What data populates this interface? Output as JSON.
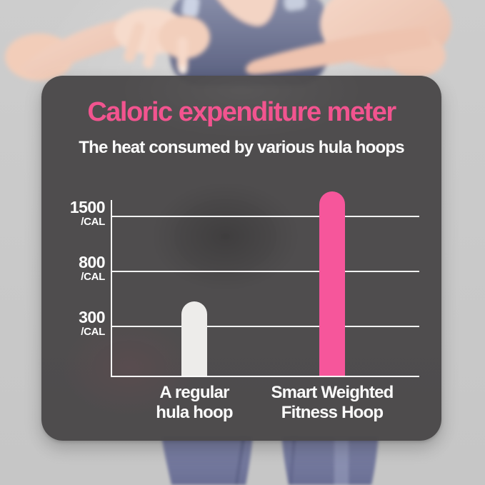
{
  "chart_data": {
    "type": "bar",
    "title": "Caloric expenditure meter",
    "subtitle": "The heat consumed by various hula hoops",
    "categories": [
      "A regular hula hoop",
      "Smart Weighted Fitness Hoop"
    ],
    "category_lines": [
      [
        "A regular",
        "hula hoop"
      ],
      [
        "Smart Weighted",
        "Fitness Hoop"
      ]
    ],
    "values": [
      300,
      1500
    ],
    "unit": "/CAL",
    "yticks": [
      {
        "value": "1500",
        "unit": "/CAL"
      },
      {
        "value": "800",
        "unit": "/CAL"
      },
      {
        "value": "300",
        "unit": "/CAL"
      }
    ],
    "ylim": [
      0,
      1600
    ],
    "grid": true,
    "legend": "none",
    "bar_colors": [
      "#edecea",
      "#f6569b"
    ],
    "note": "rounded-cap bars rise slightly above their labeled gridlines; regular hoop bar is off-white, smart weighted hoop bar is pink"
  },
  "colors": {
    "title_pink": "#f2548f",
    "bar_pink": "#f6569b",
    "bar_white": "#edecea",
    "card_grey": "#4a4849",
    "background_grey": "#c9c9c9",
    "gridline_white": "#ffffff"
  },
  "background_photo": {
    "description": "woman in grey-blue sports top (arms crossed) above the card, purple-blue leggings below the card, light grey studio background"
  }
}
